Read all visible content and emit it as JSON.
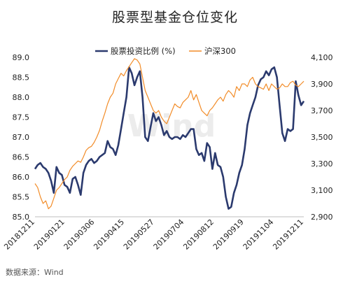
{
  "chart_data": {
    "type": "line",
    "title": "股票型基金仓位变化",
    "source": "数据来源：Wind",
    "watermark": "Wind",
    "x_tick_labels": [
      "20181211",
      "20190121",
      "20190306",
      "20190415",
      "20190527",
      "20190704",
      "20190812",
      "20190919",
      "20191104",
      "20191211"
    ],
    "left_axis": {
      "ylim": [
        85.0,
        89.0
      ],
      "ticks": [
        "85.0",
        "85.5",
        "86.0",
        "86.5",
        "87.0",
        "87.5",
        "88.0",
        "88.5",
        "89.0"
      ]
    },
    "right_axis": {
      "ylim": [
        2900,
        4100
      ],
      "ticks": [
        "2,900",
        "3,100",
        "3,300",
        "3,500",
        "3,700",
        "3,900",
        "4,100"
      ]
    },
    "legend_position": "top",
    "grid": false,
    "series": [
      {
        "name": "股票投资比例 (%)",
        "axis": "left",
        "color": "#2b3a6e",
        "x": [
          0,
          0.01,
          0.02,
          0.03,
          0.04,
          0.05,
          0.06,
          0.07,
          0.08,
          0.09,
          0.1,
          0.11,
          0.12,
          0.13,
          0.14,
          0.15,
          0.16,
          0.17,
          0.18,
          0.19,
          0.2,
          0.21,
          0.22,
          0.23,
          0.24,
          0.25,
          0.26,
          0.27,
          0.28,
          0.29,
          0.3,
          0.31,
          0.32,
          0.33,
          0.34,
          0.35,
          0.36,
          0.37,
          0.38,
          0.39,
          0.4,
          0.41,
          0.42,
          0.43,
          0.44,
          0.45,
          0.46,
          0.47,
          0.48,
          0.49,
          0.5,
          0.51,
          0.52,
          0.53,
          0.54,
          0.55,
          0.56,
          0.57,
          0.58,
          0.59,
          0.6,
          0.61,
          0.62,
          0.63,
          0.64,
          0.65,
          0.66,
          0.67,
          0.68,
          0.69,
          0.7,
          0.71,
          0.72,
          0.73,
          0.74,
          0.75,
          0.76,
          0.77,
          0.78,
          0.79,
          0.8,
          0.81,
          0.82,
          0.83,
          0.84,
          0.85,
          0.86,
          0.87,
          0.88,
          0.89,
          0.9,
          0.91,
          0.92,
          0.93,
          0.94,
          0.95,
          0.96,
          0.97,
          0.98,
          0.99,
          1.0
        ],
        "values": [
          86.2,
          86.3,
          86.35,
          86.25,
          86.2,
          86.1,
          85.9,
          85.6,
          86.25,
          86.1,
          86.05,
          85.8,
          85.75,
          85.6,
          85.95,
          86.0,
          85.8,
          85.55,
          86.1,
          86.3,
          86.4,
          86.45,
          86.35,
          86.4,
          86.5,
          86.55,
          86.6,
          86.9,
          86.75,
          86.7,
          86.55,
          86.8,
          87.2,
          87.6,
          88.0,
          88.75,
          88.6,
          88.3,
          88.5,
          88.65,
          88.0,
          87.0,
          86.9,
          87.25,
          87.6,
          87.4,
          87.5,
          87.3,
          87.05,
          87.15,
          87.0,
          86.95,
          87.0,
          87.0,
          86.95,
          87.05,
          87.0,
          87.1,
          87.2,
          87.2,
          86.7,
          86.55,
          86.6,
          86.4,
          86.85,
          86.75,
          86.2,
          86.6,
          86.3,
          86.25,
          86.0,
          85.5,
          85.2,
          85.25,
          85.6,
          85.8,
          86.1,
          86.3,
          86.7,
          87.3,
          87.6,
          87.8,
          88.0,
          88.3,
          88.45,
          88.5,
          88.65,
          88.55,
          88.7,
          88.75,
          88.5,
          87.8,
          87.1,
          86.9,
          87.2,
          87.15,
          87.2,
          88.4,
          88.05,
          87.8,
          87.9
        ]
      },
      {
        "name": "沪深300",
        "axis": "right",
        "color": "#f28c28",
        "x": [
          0,
          0.01,
          0.02,
          0.03,
          0.04,
          0.05,
          0.06,
          0.07,
          0.08,
          0.09,
          0.1,
          0.11,
          0.12,
          0.13,
          0.14,
          0.15,
          0.16,
          0.17,
          0.18,
          0.19,
          0.2,
          0.21,
          0.22,
          0.23,
          0.24,
          0.25,
          0.26,
          0.27,
          0.28,
          0.29,
          0.3,
          0.31,
          0.32,
          0.33,
          0.34,
          0.35,
          0.36,
          0.37,
          0.38,
          0.39,
          0.4,
          0.41,
          0.42,
          0.43,
          0.44,
          0.45,
          0.46,
          0.47,
          0.48,
          0.49,
          0.5,
          0.51,
          0.52,
          0.53,
          0.54,
          0.55,
          0.56,
          0.57,
          0.58,
          0.59,
          0.6,
          0.61,
          0.62,
          0.63,
          0.64,
          0.65,
          0.66,
          0.67,
          0.68,
          0.69,
          0.7,
          0.71,
          0.72,
          0.73,
          0.74,
          0.75,
          0.76,
          0.77,
          0.78,
          0.79,
          0.8,
          0.81,
          0.82,
          0.83,
          0.84,
          0.85,
          0.86,
          0.87,
          0.88,
          0.89,
          0.9,
          0.91,
          0.92,
          0.93,
          0.94,
          0.95,
          0.96,
          0.97,
          0.98,
          0.99,
          1.0
        ],
        "values": [
          3150,
          3120,
          3050,
          3000,
          3020,
          2960,
          2980,
          3040,
          3100,
          3120,
          3150,
          3180,
          3200,
          3250,
          3280,
          3300,
          3320,
          3310,
          3350,
          3400,
          3420,
          3430,
          3460,
          3500,
          3550,
          3620,
          3680,
          3750,
          3800,
          3830,
          3900,
          3940,
          3980,
          3960,
          4000,
          4030,
          4060,
          4090,
          4080,
          4050,
          3950,
          3850,
          3800,
          3750,
          3700,
          3680,
          3700,
          3650,
          3620,
          3600,
          3650,
          3700,
          3750,
          3730,
          3720,
          3760,
          3780,
          3800,
          3850,
          3780,
          3820,
          3760,
          3700,
          3680,
          3660,
          3700,
          3720,
          3750,
          3780,
          3800,
          3770,
          3820,
          3850,
          3830,
          3800,
          3880,
          3850,
          3900,
          3900,
          3880,
          3930,
          3950,
          3900,
          3880,
          3870,
          3860,
          3900,
          3850,
          3900,
          3880,
          3860,
          3870,
          3900,
          3880,
          3880,
          3910,
          3920,
          3890,
          3880,
          3900,
          3920
        ]
      }
    ]
  }
}
